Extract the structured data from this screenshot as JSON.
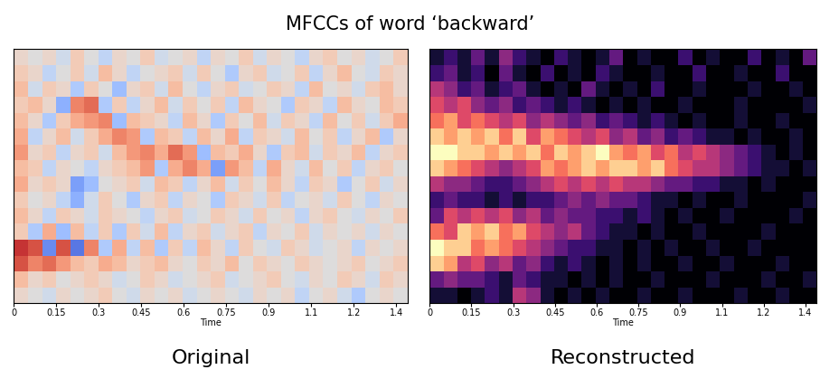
{
  "title": "MFCCs of word ‘backward’",
  "chart_data": [
    {
      "type": "heatmap",
      "title": "Original",
      "xlabel": "Time",
      "color": "coolwarm",
      "xlim": [
        0,
        1.39
      ],
      "xticks": [
        0,
        0.15,
        0.3,
        0.45,
        0.6,
        0.75,
        0.9,
        {
          "value": 1.05,
          "label": "1.1"
        },
        1.2,
        {
          "value": 1.35,
          "label": "1.4"
        }
      ],
      "tick_labels": "x",
      "color_range": [
        -1,
        1
      ],
      "cells": [
        [
          0.1,
          0.0,
          -0.1,
          0.1,
          0.0,
          0.1,
          0.2,
          0.0,
          -0.1,
          0.1,
          0.0,
          0.1,
          -0.1,
          0.0,
          0.1,
          0.0,
          -0.1,
          0.1,
          0.0,
          0.1,
          -0.2,
          0.0,
          0.1,
          -0.1,
          -0.3,
          0.0,
          0.1,
          0.0
        ],
        [
          0.3,
          0.1,
          0.2,
          0.0,
          0.1,
          0.2,
          0.1,
          -0.1,
          0.0,
          0.2,
          0.1,
          -0.1,
          0.0,
          0.1,
          0.2,
          -0.1,
          0.0,
          0.1,
          0.2,
          0.0,
          -0.1,
          0.1,
          0.0,
          0.2,
          0.1,
          -0.1,
          0.2,
          0.1
        ],
        [
          0.8,
          0.6,
          0.7,
          0.5,
          0.3,
          0.2,
          0.4,
          0.3,
          0.1,
          0.2,
          0.3,
          0.1,
          0.0,
          0.2,
          0.1,
          0.3,
          0.0,
          0.2,
          0.1,
          0.0,
          0.2,
          0.1,
          0.0,
          0.1,
          0.2,
          0.0,
          0.1,
          0.2
        ],
        [
          0.9,
          0.8,
          -0.7,
          0.8,
          -0.8,
          0.6,
          -0.3,
          0.4,
          -0.2,
          0.3,
          -0.3,
          0.2,
          -0.2,
          0.3,
          0.1,
          -0.2,
          0.2,
          0.0,
          -0.1,
          0.2,
          0.1,
          -0.1,
          0.0,
          0.1,
          -0.2,
          0.1,
          0.0,
          0.1
        ],
        [
          0.2,
          -0.3,
          0.4,
          -0.4,
          0.3,
          -0.2,
          0.2,
          -0.3,
          0.2,
          -0.1,
          0.3,
          -0.2,
          0.1,
          0.2,
          -0.1,
          0.1,
          0.2,
          -0.2,
          0.1,
          0.0,
          0.2,
          -0.1,
          0.1,
          0.0,
          0.1,
          -0.1,
          0.1,
          0.0
        ],
        [
          0.3,
          0.1,
          -0.2,
          0.2,
          0.1,
          -0.1,
          0.2,
          0.1,
          0.0,
          -0.2,
          0.1,
          0.2,
          -0.1,
          0.0,
          0.2,
          0.1,
          -0.1,
          0.2,
          0.0,
          0.1,
          -0.2,
          0.1,
          0.2,
          0.0,
          -0.1,
          0.1,
          0.0,
          0.2
        ],
        [
          0.2,
          0.0,
          0.1,
          -0.2,
          -0.5,
          -0.1,
          0.2,
          0.0,
          -0.3,
          0.1,
          0.2,
          -0.2,
          0.1,
          0.0,
          -0.3,
          0.2,
          0.1,
          -0.1,
          0.2,
          -0.2,
          0.0,
          0.1,
          -0.1,
          0.2,
          0.0,
          -0.2,
          0.1,
          0.0
        ],
        [
          0.4,
          0.1,
          0.2,
          0.1,
          -0.6,
          -0.4,
          0.0,
          0.1,
          0.2,
          -0.1,
          0.3,
          0.2,
          -0.2,
          0.1,
          0.3,
          -0.1,
          0.2,
          0.0,
          0.3,
          0.1,
          -0.2,
          0.2,
          0.1,
          -0.3,
          0.0,
          0.2,
          -0.1,
          0.1
        ],
        [
          0.3,
          0.2,
          -0.2,
          0.1,
          0.0,
          -0.2,
          0.1,
          0.2,
          0.3,
          0.5,
          -0.3,
          0.4,
          0.6,
          0.4,
          -0.6,
          0.5,
          0.3,
          -0.2,
          0.4,
          0.1,
          -0.1,
          0.3,
          0.0,
          0.2,
          -0.2,
          0.1,
          0.2,
          0.0
        ],
        [
          0.5,
          0.1,
          0.2,
          -0.2,
          0.1,
          0.2,
          -0.1,
          0.3,
          0.5,
          0.6,
          0.4,
          0.7,
          0.5,
          -0.4,
          0.3,
          0.2,
          0.4,
          0.1,
          -0.3,
          0.2,
          0.3,
          -0.1,
          0.2,
          0.1,
          0.3,
          -0.2,
          0.1,
          0.2
        ],
        [
          0.4,
          -0.2,
          0.1,
          0.3,
          -0.1,
          0.2,
          0.4,
          0.6,
          0.5,
          -0.3,
          0.3,
          0.2,
          -0.2,
          0.3,
          0.1,
          0.4,
          -0.2,
          0.2,
          0.1,
          -0.1,
          0.3,
          0.0,
          0.2,
          -0.2,
          0.1,
          0.3,
          -0.3,
          0.1
        ],
        [
          0.3,
          0.1,
          -0.3,
          0.2,
          0.4,
          0.5,
          0.6,
          -0.4,
          0.3,
          0.2,
          0.1,
          -0.2,
          0.3,
          0.1,
          -0.3,
          0.2,
          0.0,
          0.3,
          -0.1,
          0.2,
          0.1,
          -0.2,
          0.3,
          0.0,
          0.2,
          -0.1,
          0.2,
          0.4
        ],
        [
          0.2,
          0.3,
          0.1,
          -0.5,
          0.6,
          0.7,
          -0.3,
          0.2,
          -0.2,
          0.1,
          0.3,
          -0.1,
          0.2,
          0.0,
          0.2,
          -0.2,
          0.3,
          0.1,
          0.0,
          -0.3,
          0.2,
          0.1,
          -0.2,
          0.3,
          0.1,
          0.0,
          0.3,
          0.2
        ],
        [
          0.3,
          -0.1,
          0.2,
          0.1,
          -0.3,
          0.2,
          0.0,
          -0.4,
          0.1,
          0.2,
          -0.1,
          0.3,
          0.0,
          -0.2,
          0.1,
          0.2,
          -0.1,
          0.0,
          0.2,
          0.1,
          -0.2,
          0.3,
          0.0,
          0.1,
          -0.1,
          0.2,
          0.3,
          0.1
        ],
        [
          0.2,
          0.1,
          -0.2,
          0.0,
          0.2,
          -0.1,
          0.3,
          0.1,
          -0.2,
          0.0,
          0.1,
          0.2,
          -0.1,
          0.2,
          0.0,
          -0.3,
          0.1,
          0.2,
          -0.1,
          0.0,
          0.2,
          -0.2,
          0.1,
          0.3,
          0.0,
          -0.1,
          0.2,
          0.1
        ],
        [
          0.1,
          0.0,
          0.1,
          -0.1,
          0.2,
          0.0,
          -0.2,
          0.1,
          0.0,
          0.2,
          -0.1,
          0.0,
          0.1,
          -0.2,
          0.1,
          0.0,
          0.2,
          -0.1,
          0.1,
          0.0,
          -0.2,
          0.1,
          0.2,
          0.0,
          0.1,
          -0.1,
          0.0,
          0.2
        ]
      ]
    },
    {
      "type": "heatmap",
      "title": "Reconstructed",
      "xlabel": "Time",
      "color": "magma",
      "xlim": [
        0,
        1.39
      ],
      "xticks": [
        0,
        0.15,
        0.3,
        0.45,
        0.6,
        0.75,
        0.9,
        {
          "value": 1.05,
          "label": "1.1"
        },
        1.2,
        {
          "value": 1.35,
          "label": "1.4"
        }
      ],
      "tick_labels": "x",
      "color_range": [
        0,
        1
      ],
      "cells": [
        [
          0.1,
          0.1,
          0.0,
          0.1,
          0.2,
          0.1,
          0.5,
          0.4,
          0.1,
          0.0,
          0.1,
          0.0,
          0.1,
          0.0,
          0.0,
          0.1,
          0.0,
          0.0,
          0.1,
          0.0,
          0.0,
          0.0,
          0.1,
          0.0,
          0.0,
          0.1,
          0.0,
          0.0
        ],
        [
          0.3,
          0.4,
          0.3,
          0.3,
          0.2,
          0.1,
          0.3,
          0.2,
          0.1,
          0.1,
          0.0,
          0.1,
          0.0,
          0.1,
          0.0,
          0.0,
          0.1,
          0.0,
          0.0,
          0.0,
          0.1,
          0.0,
          0.0,
          0.0,
          0.1,
          0.0,
          0.0,
          0.1
        ],
        [
          0.9,
          0.8,
          0.5,
          0.6,
          0.4,
          0.5,
          0.3,
          0.4,
          0.2,
          0.1,
          0.2,
          0.1,
          0.0,
          0.1,
          0.0,
          0.1,
          0.0,
          0.0,
          0.1,
          0.0,
          0.0,
          0.1,
          0.0,
          0.0,
          0.0,
          0.1,
          0.0,
          0.0
        ],
        [
          1.0,
          0.9,
          0.9,
          0.7,
          0.8,
          0.7,
          0.6,
          0.5,
          0.4,
          0.3,
          0.2,
          0.2,
          0.1,
          0.1,
          0.0,
          0.1,
          0.0,
          0.1,
          0.0,
          0.0,
          0.1,
          0.0,
          0.0,
          0.1,
          0.0,
          0.0,
          0.0,
          0.0
        ],
        [
          0.7,
          0.6,
          0.9,
          0.8,
          0.9,
          0.7,
          0.8,
          0.6,
          0.5,
          0.4,
          0.5,
          0.3,
          0.2,
          0.1,
          0.1,
          0.0,
          0.1,
          0.0,
          0.0,
          0.1,
          0.0,
          0.0,
          0.0,
          0.0,
          0.1,
          0.0,
          0.0,
          0.0
        ],
        [
          0.3,
          0.6,
          0.5,
          0.6,
          0.5,
          0.6,
          0.4,
          0.5,
          0.3,
          0.4,
          0.3,
          0.3,
          0.2,
          0.2,
          0.1,
          0.2,
          0.1,
          0.0,
          0.1,
          0.0,
          0.0,
          0.1,
          0.0,
          0.0,
          0.0,
          0.0,
          0.1,
          0.0
        ],
        [
          0.2,
          0.3,
          0.2,
          0.2,
          0.1,
          0.2,
          0.1,
          0.2,
          0.2,
          0.3,
          0.4,
          0.3,
          0.4,
          0.3,
          0.3,
          0.2,
          0.1,
          0.1,
          0.0,
          0.1,
          0.0,
          0.0,
          0.1,
          0.0,
          0.0,
          0.0,
          0.0,
          0.1
        ],
        [
          0.5,
          0.4,
          0.4,
          0.3,
          0.2,
          0.2,
          0.3,
          0.4,
          0.5,
          0.6,
          0.5,
          0.6,
          0.5,
          0.6,
          0.5,
          0.5,
          0.4,
          0.3,
          0.3,
          0.2,
          0.2,
          0.1,
          0.1,
          0.0,
          0.1,
          0.0,
          0.0,
          0.0
        ],
        [
          0.9,
          0.8,
          0.7,
          0.6,
          0.5,
          0.4,
          0.5,
          0.6,
          0.8,
          0.7,
          0.8,
          0.9,
          0.8,
          0.9,
          0.9,
          0.8,
          0.9,
          0.7,
          0.6,
          0.5,
          0.5,
          0.4,
          0.3,
          0.2,
          0.1,
          0.1,
          0.0,
          0.1
        ],
        [
          1.0,
          1.0,
          0.9,
          0.9,
          0.8,
          0.9,
          0.8,
          0.9,
          0.7,
          0.9,
          0.8,
          0.9,
          1.0,
          0.8,
          0.7,
          0.8,
          0.6,
          0.7,
          0.5,
          0.6,
          0.5,
          0.4,
          0.3,
          0.2,
          0.1,
          0.0,
          0.1,
          0.0
        ],
        [
          0.9,
          0.8,
          0.9,
          0.8,
          0.9,
          0.7,
          0.9,
          0.6,
          0.8,
          0.7,
          0.6,
          0.5,
          0.6,
          0.4,
          0.5,
          0.3,
          0.4,
          0.2,
          0.3,
          0.2,
          0.1,
          0.1,
          0.0,
          0.1,
          0.0,
          0.0,
          0.1,
          0.0
        ],
        [
          0.7,
          0.8,
          0.6,
          0.7,
          0.6,
          0.5,
          0.6,
          0.4,
          0.5,
          0.4,
          0.3,
          0.4,
          0.2,
          0.3,
          0.2,
          0.1,
          0.2,
          0.1,
          0.0,
          0.1,
          0.0,
          0.0,
          0.1,
          0.0,
          0.0,
          0.1,
          0.0,
          0.0
        ],
        [
          0.6,
          0.5,
          0.6,
          0.4,
          0.3,
          0.4,
          0.2,
          0.3,
          0.2,
          0.1,
          0.2,
          0.1,
          0.0,
          0.1,
          0.0,
          0.1,
          0.0,
          0.0,
          0.1,
          0.0,
          0.0,
          0.0,
          0.1,
          0.0,
          0.0,
          0.0,
          0.0,
          0.1
        ],
        [
          0.5,
          0.4,
          0.2,
          0.3,
          0.1,
          0.2,
          0.3,
          0.1,
          0.0,
          0.1,
          0.0,
          0.3,
          0.1,
          0.0,
          0.1,
          0.0,
          0.2,
          0.0,
          0.0,
          0.1,
          0.0,
          0.0,
          0.0,
          0.1,
          0.0,
          0.0,
          0.1,
          0.0
        ],
        [
          0.2,
          0.3,
          0.1,
          0.2,
          0.0,
          0.3,
          0.1,
          0.0,
          0.2,
          0.0,
          0.1,
          0.0,
          0.2,
          0.1,
          0.0,
          0.0,
          0.1,
          0.0,
          0.0,
          0.2,
          0.0,
          0.0,
          0.1,
          0.0,
          0.0,
          0.2,
          0.0,
          0.0
        ],
        [
          0.1,
          0.2,
          0.1,
          0.3,
          0.1,
          0.4,
          0.2,
          0.1,
          0.0,
          0.2,
          0.1,
          0.0,
          0.1,
          0.3,
          0.0,
          0.1,
          0.0,
          0.0,
          0.2,
          0.0,
          0.1,
          0.0,
          0.0,
          0.2,
          0.0,
          0.1,
          0.0,
          0.3
        ]
      ]
    }
  ]
}
